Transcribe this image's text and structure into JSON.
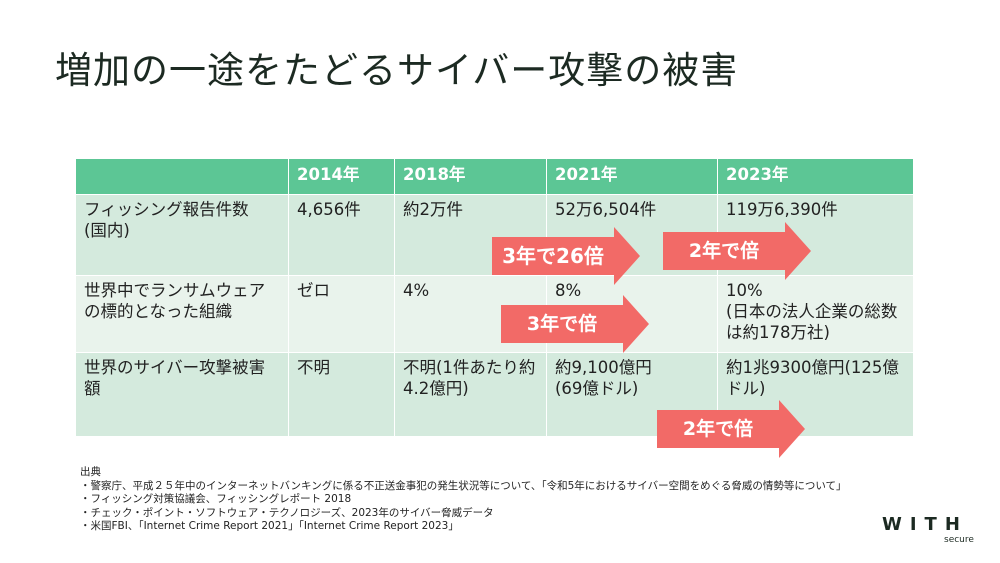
{
  "title": "増加の一途をたどるサイバー攻撃の被害",
  "table": {
    "headers": [
      "",
      "2014年",
      "2018年",
      "2021年",
      "2023年"
    ],
    "rows": [
      [
        "フィッシング報告件数\n(国内)",
        "4,656件",
        "約2万件",
        "52万6,504件",
        "119万6,390件"
      ],
      [
        "世界中でランサムウェアの標的となった組織",
        "ゼロ",
        "4%",
        "8%",
        "10%\n(日本の法人企業の総数は約178万社)"
      ],
      [
        "世界のサイバー攻撃被害額",
        "不明",
        "不明(1件あたり約4.2億円)",
        "約9,100億円\n(69億ドル)",
        "約1兆9300億円(125億ドル)"
      ]
    ]
  },
  "arrows": {
    "a1": "3年で26倍",
    "a2": "2年で倍",
    "a3": "3年で倍",
    "a4": "2年で倍"
  },
  "sources": {
    "heading": "出典",
    "items": [
      "・警察庁、平成２５年中のインターネットバンキングに係る不正送金事犯の発生状況等について、「令和5年におけるサイバー空間をめぐる脅威の情勢等について」",
      "・フィッシング対策協議会、フィッシングレポート 2018",
      "・チェック・ポイント・ソフトウェア・テクノロジーズ、2023年のサイバー脅威データ",
      "・米国FBI、「Internet Crime Report 2021」「Internet Crime Report 2023」"
    ]
  },
  "logo": {
    "main": "WITH",
    "sub": "secure"
  }
}
